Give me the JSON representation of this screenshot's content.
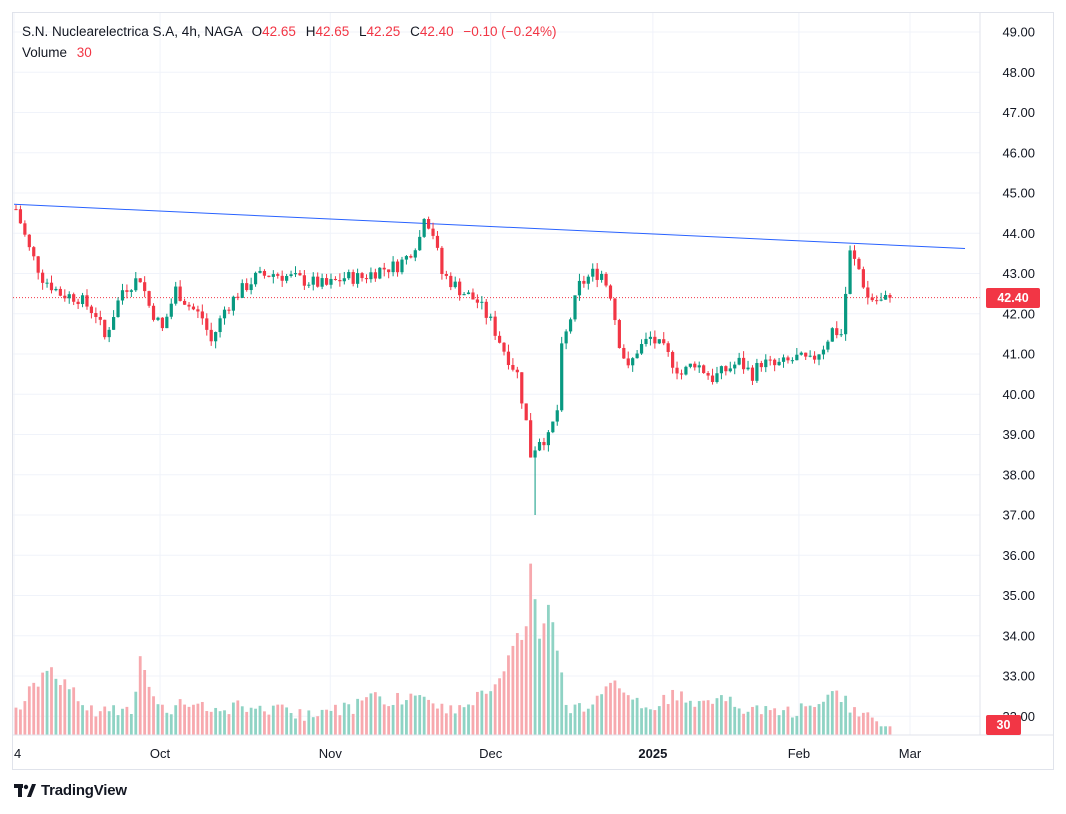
{
  "header": {
    "symbol": "S.N. Nuclearelectrica S.A, 4h, NAGA",
    "o_label": "O",
    "o_value": "42.65",
    "h_label": "H",
    "h_value": "42.65",
    "l_label": "L",
    "l_value": "42.25",
    "c_label": "C",
    "c_value": "42.40",
    "change": "−0.10 (−0.24%)",
    "volume_label": "Volume",
    "volume_value": "30"
  },
  "price_badge": "42.40",
  "volume_badge": "30",
  "brand": "TradingView",
  "colors": {
    "up": "#089981",
    "down": "#f23645",
    "trendline": "#2962ff",
    "vol_up": "#8fd3c4",
    "vol_down": "#f7a9ae",
    "grid": "#f0f3fa"
  },
  "chart_data": {
    "type": "candlestick",
    "y_ticks": [
      "49.00",
      "48.00",
      "47.00",
      "46.00",
      "45.00",
      "44.00",
      "43.00",
      "42.00",
      "41.00",
      "40.00",
      "39.00",
      "38.00",
      "37.00",
      "36.00",
      "35.00",
      "34.00",
      "33.00",
      "32.00"
    ],
    "ylim": [
      31.5,
      49.4
    ],
    "x_labels": [
      {
        "label": "4",
        "bold": false,
        "t": 0
      },
      {
        "label": "Oct",
        "bold": false,
        "t": 0.163
      },
      {
        "label": "Nov",
        "bold": false,
        "t": 0.353
      },
      {
        "label": "Dec",
        "bold": false,
        "t": 0.532
      },
      {
        "label": "2025",
        "bold": true,
        "t": 0.713
      },
      {
        "label": "Feb",
        "bold": false,
        "t": 0.876
      },
      {
        "label": "Mar",
        "bold": false,
        "t": 1.0
      }
    ],
    "last_price": 42.4,
    "trendline": {
      "from": 44.72,
      "to": 43.62
    },
    "anchors": [
      [
        0,
        44.6
      ],
      [
        3,
        43.6
      ],
      [
        6,
        42.9
      ],
      [
        10,
        42.5
      ],
      [
        14,
        42.4
      ],
      [
        18,
        42.0
      ],
      [
        20,
        41.4
      ],
      [
        24,
        42.6
      ],
      [
        28,
        42.9
      ],
      [
        30,
        42.2
      ],
      [
        33,
        41.6
      ],
      [
        36,
        42.6
      ],
      [
        39,
        42.2
      ],
      [
        42,
        41.9
      ],
      [
        44,
        41.3
      ],
      [
        47,
        42.1
      ],
      [
        50,
        42.5
      ],
      [
        54,
        42.9
      ],
      [
        58,
        43.0
      ],
      [
        62,
        42.9
      ],
      [
        66,
        42.8
      ],
      [
        70,
        42.7
      ],
      [
        74,
        42.9
      ],
      [
        78,
        42.9
      ],
      [
        82,
        43.1
      ],
      [
        86,
        43.2
      ],
      [
        88,
        43.4
      ],
      [
        91,
        43.9
      ],
      [
        92,
        44.5
      ],
      [
        94,
        44.0
      ],
      [
        96,
        43.0
      ],
      [
        100,
        42.6
      ],
      [
        104,
        42.3
      ],
      [
        107,
        41.8
      ],
      [
        110,
        41.1
      ],
      [
        113,
        40.5
      ],
      [
        115,
        39.3
      ],
      [
        116,
        38.5
      ],
      [
        118,
        38.9
      ],
      [
        120,
        38.9
      ],
      [
        122,
        39.6
      ],
      [
        123,
        41.1
      ],
      [
        125,
        41.9
      ],
      [
        127,
        42.7
      ],
      [
        130,
        43.0
      ],
      [
        132,
        43.0
      ],
      [
        134,
        42.5
      ],
      [
        136,
        41.3
      ],
      [
        138,
        40.6
      ],
      [
        140,
        41.1
      ],
      [
        143,
        41.4
      ],
      [
        146,
        41.1
      ],
      [
        148,
        40.8
      ],
      [
        150,
        40.5
      ],
      [
        153,
        40.8
      ],
      [
        155,
        40.6
      ],
      [
        157,
        40.4
      ],
      [
        160,
        40.6
      ],
      [
        163,
        40.8
      ],
      [
        166,
        40.5
      ],
      [
        168,
        40.8
      ],
      [
        171,
        40.7
      ],
      [
        174,
        40.8
      ],
      [
        176,
        40.9
      ],
      [
        179,
        40.8
      ],
      [
        182,
        41.2
      ],
      [
        184,
        41.6
      ],
      [
        186,
        41.5
      ],
      [
        188,
        43.5
      ],
      [
        190,
        43.1
      ],
      [
        192,
        42.4
      ],
      [
        195,
        42.3
      ],
      [
        197,
        42.4
      ]
    ],
    "volume_anchors": [
      [
        0,
        32.3
      ],
      [
        4,
        33.0
      ],
      [
        8,
        33.3
      ],
      [
        12,
        32.9
      ],
      [
        16,
        32.3
      ],
      [
        22,
        32.4
      ],
      [
        26,
        32.3
      ],
      [
        28,
        33.5
      ],
      [
        32,
        32.3
      ],
      [
        36,
        32.4
      ],
      [
        40,
        32.6
      ],
      [
        44,
        32.4
      ],
      [
        50,
        32.4
      ],
      [
        56,
        32.3
      ],
      [
        62,
        32.3
      ],
      [
        66,
        32.2
      ],
      [
        70,
        32.3
      ],
      [
        76,
        32.4
      ],
      [
        80,
        32.6
      ],
      [
        86,
        32.6
      ],
      [
        90,
        32.7
      ],
      [
        96,
        32.4
      ],
      [
        100,
        32.3
      ],
      [
        106,
        32.8
      ],
      [
        110,
        33.2
      ],
      [
        112,
        34.0
      ],
      [
        115,
        34.3
      ],
      [
        116,
        35.8
      ],
      [
        118,
        34.1
      ],
      [
        120,
        35.0
      ],
      [
        122,
        33.9
      ],
      [
        124,
        32.4
      ],
      [
        128,
        32.4
      ],
      [
        132,
        32.6
      ],
      [
        134,
        33.0
      ],
      [
        136,
        32.9
      ],
      [
        140,
        32.5
      ],
      [
        144,
        32.4
      ],
      [
        148,
        32.7
      ],
      [
        152,
        32.6
      ],
      [
        156,
        32.4
      ],
      [
        160,
        32.6
      ],
      [
        164,
        32.4
      ],
      [
        168,
        32.3
      ],
      [
        172,
        32.3
      ],
      [
        176,
        32.3
      ],
      [
        180,
        32.4
      ],
      [
        184,
        32.7
      ],
      [
        186,
        32.7
      ],
      [
        188,
        32.4
      ],
      [
        190,
        32.3
      ],
      [
        192,
        32.1
      ],
      [
        197,
        31.7
      ]
    ]
  }
}
